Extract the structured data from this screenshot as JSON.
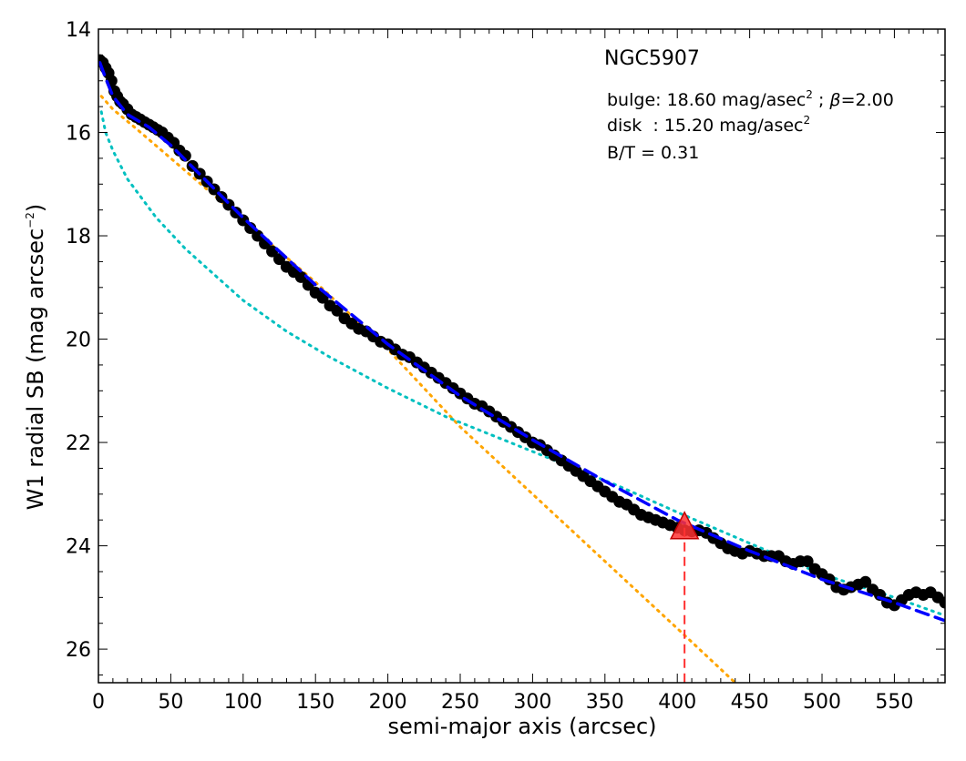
{
  "chart_data": {
    "type": "scatter",
    "xlabel": "semi-major axis (arcsec)",
    "ylabel_main": "W1 radial SB (mag arcsec",
    "ylabel_sup": "−2",
    "ylabel_end": ")",
    "xlim": [
      0,
      585
    ],
    "ylim": [
      26.65,
      14
    ],
    "y_inverted": true,
    "xticks": [
      0,
      50,
      100,
      150,
      200,
      250,
      300,
      350,
      400,
      450,
      500,
      550
    ],
    "yticks": [
      14,
      16,
      18,
      20,
      22,
      24,
      26
    ],
    "annotations": {
      "name": "NGC5907",
      "bulge_prefix": "bulge: 18.60 mag/asec",
      "bulge_sup": "2",
      "bulge_beta_sep": " ; ",
      "bulge_beta_symbol": "β",
      "bulge_beta_value": "=2.00",
      "disk_prefix": "disk  : 15.20 mag/asec",
      "disk_sup": "2",
      "bt": "B/T = 0.31"
    },
    "marker_radius_arcsec": 405,
    "marker_sb": 23.65,
    "series": [
      {
        "kind": "observed",
        "color": "#000000",
        "x": [
          1,
          3,
          5,
          7,
          9,
          11,
          13,
          15,
          17,
          20,
          23,
          26,
          29,
          32,
          35,
          38,
          41,
          44,
          48,
          52,
          56,
          60,
          65,
          70,
          75,
          80,
          85,
          90,
          95,
          100,
          105,
          110,
          115,
          120,
          125,
          130,
          135,
          140,
          145,
          150,
          155,
          160,
          165,
          170,
          175,
          180,
          185,
          190,
          195,
          200,
          205,
          210,
          215,
          220,
          225,
          230,
          235,
          240,
          245,
          250,
          255,
          260,
          265,
          270,
          275,
          280,
          285,
          290,
          295,
          300,
          305,
          310,
          315,
          320,
          325,
          330,
          335,
          340,
          345,
          350,
          355,
          360,
          365,
          370,
          375,
          380,
          385,
          390,
          395,
          400,
          405,
          410,
          415,
          420,
          425,
          430,
          435,
          440,
          445,
          450,
          455,
          460,
          465,
          470,
          475,
          480,
          485,
          490,
          495,
          500,
          505,
          510,
          515,
          520,
          525,
          530,
          535,
          540,
          545,
          550,
          555,
          560,
          565,
          570,
          575,
          580,
          585
        ],
        "y": [
          14.6,
          14.65,
          14.75,
          14.85,
          15.0,
          15.2,
          15.3,
          15.4,
          15.45,
          15.55,
          15.65,
          15.7,
          15.75,
          15.8,
          15.85,
          15.9,
          15.95,
          16.0,
          16.1,
          16.2,
          16.35,
          16.45,
          16.65,
          16.8,
          16.95,
          17.1,
          17.25,
          17.4,
          17.55,
          17.7,
          17.85,
          18.0,
          18.15,
          18.3,
          18.45,
          18.6,
          18.7,
          18.8,
          18.95,
          19.1,
          19.2,
          19.35,
          19.45,
          19.6,
          19.7,
          19.8,
          19.85,
          19.95,
          20.05,
          20.1,
          20.2,
          20.3,
          20.35,
          20.45,
          20.55,
          20.65,
          20.75,
          20.85,
          20.95,
          21.05,
          21.15,
          21.25,
          21.3,
          21.4,
          21.5,
          21.6,
          21.7,
          21.8,
          21.9,
          22.0,
          22.05,
          22.15,
          22.25,
          22.35,
          22.45,
          22.55,
          22.65,
          22.75,
          22.85,
          22.95,
          23.05,
          23.15,
          23.2,
          23.3,
          23.4,
          23.45,
          23.5,
          23.55,
          23.6,
          23.65,
          23.7,
          23.72,
          23.7,
          23.75,
          23.85,
          23.95,
          24.05,
          24.1,
          24.15,
          24.1,
          24.15,
          24.2,
          24.2,
          24.2,
          24.3,
          24.35,
          24.3,
          24.3,
          24.45,
          24.55,
          24.65,
          24.8,
          24.85,
          24.8,
          24.75,
          24.7,
          24.85,
          24.95,
          25.1,
          25.15,
          25.05,
          24.95,
          24.9,
          24.95,
          24.9,
          25.0,
          25.1
        ],
        "name": ""
      },
      {
        "kind": "bulge-model",
        "color": "#FFA500",
        "x": [
          2,
          10,
          25,
          50,
          75,
          100,
          150,
          200,
          250,
          300,
          350,
          400,
          440
        ],
        "y": [
          15.3,
          15.55,
          15.9,
          16.5,
          17.1,
          17.7,
          18.9,
          20.2,
          21.7,
          23.0,
          24.3,
          25.6,
          26.65
        ],
        "name": ""
      },
      {
        "kind": "disk-model",
        "color": "#00C0C0",
        "x": [
          2,
          5,
          10,
          20,
          40,
          60,
          80,
          100,
          130,
          160,
          200,
          240,
          280,
          320,
          360,
          400,
          450,
          500,
          550,
          585
        ],
        "y": [
          15.6,
          16.0,
          16.35,
          16.9,
          17.65,
          18.25,
          18.75,
          19.25,
          19.85,
          20.35,
          20.95,
          21.5,
          21.95,
          22.4,
          22.85,
          23.35,
          23.95,
          24.55,
          25.0,
          25.35
        ],
        "name": ""
      },
      {
        "kind": "total-model",
        "color": "#0000FF",
        "x": [
          1,
          5,
          10,
          20,
          35,
          50,
          75,
          100,
          150,
          200,
          250,
          300,
          350,
          400,
          450,
          500,
          550,
          585
        ],
        "y": [
          14.65,
          14.95,
          15.3,
          15.65,
          15.9,
          16.25,
          16.95,
          17.65,
          18.95,
          20.1,
          21.1,
          21.95,
          22.75,
          23.5,
          24.1,
          24.65,
          25.1,
          25.45
        ],
        "name": ""
      }
    ]
  }
}
